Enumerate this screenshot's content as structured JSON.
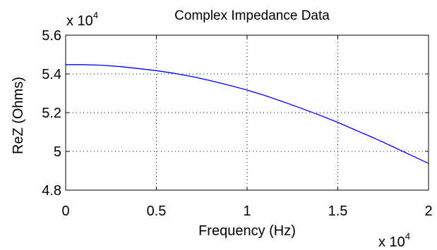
{
  "chart_data": {
    "type": "line",
    "title": "Complex Impedance Data",
    "xlabel": "Frequency (Hz)",
    "ylabel": "ReZ (Ohms)",
    "x_multiplier": {
      "base": "x 10",
      "exponent": "4"
    },
    "y_multiplier": {
      "base": "x 10",
      "exponent": "4"
    },
    "xlim": [
      0,
      20000
    ],
    "ylim": [
      48000,
      56000
    ],
    "x_ticks": [
      0,
      5000,
      10000,
      15000,
      20000
    ],
    "x_tick_labels": [
      "0",
      "0.5",
      "1",
      "1.5",
      "2"
    ],
    "y_ticks": [
      48000,
      50000,
      52000,
      54000,
      56000
    ],
    "y_tick_labels": [
      "4.8",
      "5",
      "5.2",
      "5.4",
      "5.6"
    ],
    "grid": true,
    "colors": {
      "series": "#0000ff",
      "axis": "#000000",
      "grid": "#000000"
    },
    "series": [
      {
        "x": [
          0,
          1000,
          2000,
          3000,
          4000,
          5000,
          6000,
          7000,
          8000,
          9000,
          10000,
          11000,
          12000,
          13000,
          14000,
          15000,
          16000,
          17000,
          18000,
          19000,
          20000
        ],
        "y": [
          54480,
          54480,
          54450,
          54380,
          54280,
          54170,
          54030,
          53860,
          53650,
          53420,
          53170,
          52880,
          52560,
          52220,
          51870,
          51500,
          51090,
          50690,
          50260,
          49820,
          49380
        ]
      }
    ]
  }
}
